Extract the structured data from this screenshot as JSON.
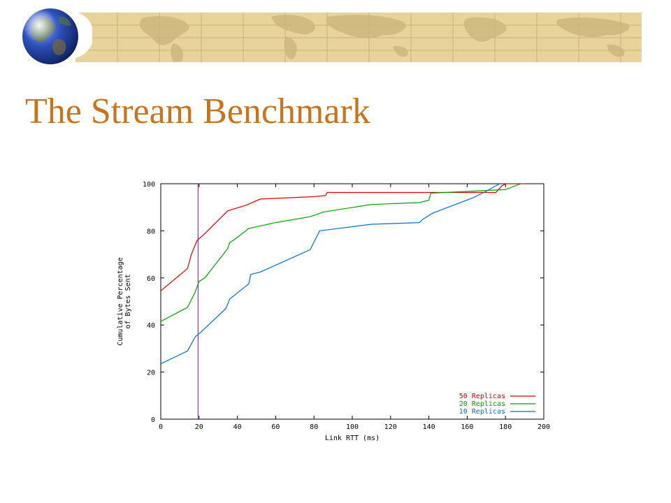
{
  "slide": {
    "title": "The Stream Benchmark"
  },
  "decor": {
    "banner_icon": "world-map-banner",
    "globe_icon": "globe-icon",
    "banner_color": "#e8d39a",
    "title_color": "#c8731d"
  },
  "chart_data": {
    "type": "line",
    "title": "",
    "xlabel": "Link RTT (ms)",
    "ylabel": "Cumulative Percentage of Bytes Sent",
    "ylabel_lines": [
      "Cumulative Percentage",
      "of Bytes Sent"
    ],
    "xlim": [
      0,
      200
    ],
    "ylim": [
      0,
      100
    ],
    "xticks": [
      0,
      20,
      40,
      60,
      80,
      100,
      120,
      140,
      160,
      180,
      200
    ],
    "yticks": [
      0,
      20,
      40,
      60,
      80,
      100
    ],
    "grid": false,
    "legend": "bottom-right",
    "reference_line": {
      "x": 19.5,
      "color": "#9933cc"
    },
    "series": [
      {
        "name": "50 Replicas",
        "color": "#dd0000",
        "points": [
          [
            0,
            54.5
          ],
          [
            14,
            64
          ],
          [
            16,
            70
          ],
          [
            19,
            76
          ],
          [
            22,
            78
          ],
          [
            35,
            88.5
          ],
          [
            45,
            91
          ],
          [
            52,
            93.5
          ],
          [
            80,
            94.5
          ],
          [
            86,
            95
          ],
          [
            87,
            96.3
          ],
          [
            175,
            96.3
          ],
          [
            178,
            99
          ],
          [
            180,
            100
          ],
          [
            190,
            100
          ]
        ]
      },
      {
        "name": "20 Replicas",
        "color": "#00a000",
        "points": [
          [
            0,
            41.5
          ],
          [
            14,
            47.5
          ],
          [
            18,
            54
          ],
          [
            20,
            58.5
          ],
          [
            23,
            60
          ],
          [
            35,
            72.5
          ],
          [
            36,
            75
          ],
          [
            38,
            76
          ],
          [
            46,
            81
          ],
          [
            60,
            83.5
          ],
          [
            78,
            86
          ],
          [
            85,
            88
          ],
          [
            110,
            91.2
          ],
          [
            135,
            92
          ],
          [
            140,
            93
          ],
          [
            141,
            96
          ],
          [
            180,
            97.5
          ],
          [
            188,
            100
          ]
        ]
      },
      {
        "name": "10 Replicas",
        "color": "#0070cc",
        "points": [
          [
            0,
            23.5
          ],
          [
            14,
            29
          ],
          [
            18,
            35
          ],
          [
            21,
            37
          ],
          [
            34,
            47
          ],
          [
            36,
            51
          ],
          [
            46,
            57.5
          ],
          [
            47,
            61.5
          ],
          [
            52,
            62.5
          ],
          [
            78,
            72
          ],
          [
            83,
            80
          ],
          [
            85,
            80.2
          ],
          [
            110,
            82.8
          ],
          [
            135,
            83.5
          ],
          [
            137,
            85
          ],
          [
            142,
            87.5
          ],
          [
            163,
            94
          ],
          [
            168,
            96
          ],
          [
            177,
            100
          ]
        ]
      }
    ]
  }
}
